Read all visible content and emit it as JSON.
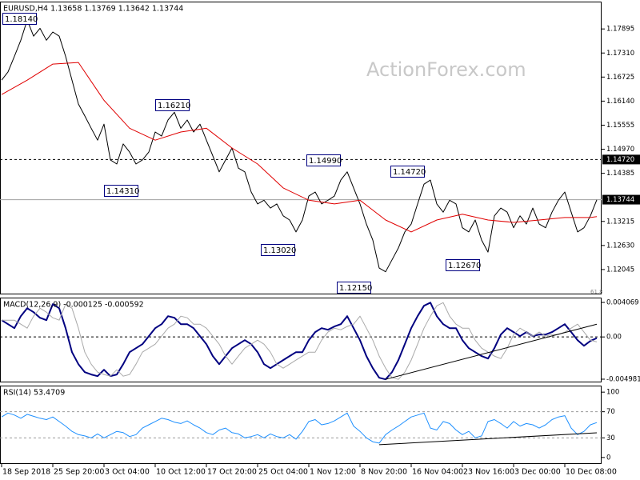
{
  "chart_data": [
    {
      "type": "line",
      "title": "EURUSD,H4  1.13658 1.13769 1.13642 1.13744",
      "watermark": "ActionForex.com",
      "fib_label": "61.8",
      "xlim": [
        -0.25,
        93.75
      ],
      "ylim": [
        1.1144,
        1.1856
      ],
      "yticks": [
        1.17895,
        {
          "value": 1.1731,
          "label": "1.17310"
        },
        1.16725,
        {
          "value": 1.1614,
          "label": "1.16140"
        },
        1.15555,
        {
          "value": 1.1497,
          "label": "1.14970"
        },
        1.14385,
        1.13215,
        {
          "value": 1.1263,
          "label": "1.12630"
        },
        1.12045
      ],
      "hlines": [
        {
          "value": 1.1472,
          "label": "1.14720",
          "dashed": true,
          "color": "#000000"
        },
        {
          "value": 1.13744,
          "label": "1.13744",
          "dashed": false,
          "color": "#a0a0a0"
        }
      ],
      "series": [
        {
          "color": "#000000",
          "values": [
            1.1665,
            1.1685,
            1.1723,
            1.1762,
            1.1811,
            1.1772,
            1.1791,
            1.1762,
            1.1782,
            1.1772,
            1.1723,
            1.1665,
            1.1607,
            1.1578,
            1.1548,
            1.1519,
            1.1558,
            1.1471,
            1.1461,
            1.151,
            1.149,
            1.1461,
            1.1471,
            1.149,
            1.1539,
            1.1529,
            1.1568,
            1.1587,
            1.1548,
            1.1568,
            1.1539,
            1.1558,
            1.1519,
            1.1481,
            1.1442,
            1.1471,
            1.15,
            1.1451,
            1.1442,
            1.1393,
            1.1364,
            1.1373,
            1.1354,
            1.1364,
            1.1335,
            1.1325,
            1.1296,
            1.1325,
            1.1383,
            1.1393,
            1.1364,
            1.1373,
            1.1383,
            1.1422,
            1.1442,
            1.1403,
            1.1364,
            1.1315,
            1.1276,
            1.1208,
            1.1199,
            1.1228,
            1.1257,
            1.1296,
            1.1315,
            1.1364,
            1.1412,
            1.1422,
            1.1364,
            1.1344,
            1.1373,
            1.1364,
            1.1306,
            1.1296,
            1.1325,
            1.1276,
            1.1247,
            1.1335,
            1.1354,
            1.1344,
            1.1306,
            1.1335,
            1.1315,
            1.1354,
            1.1315,
            1.1306,
            1.1344,
            1.1373,
            1.1393,
            1.1344,
            1.1296,
            1.1306,
            1.1335,
            1.1374
          ]
        },
        {
          "color": "#e00000",
          "x": [
            0,
            4,
            8,
            12,
            16,
            20,
            24,
            28,
            32,
            36,
            40,
            44,
            48,
            52,
            56,
            60,
            64,
            68,
            72,
            76,
            80,
            84,
            88,
            92,
            93
          ],
          "values": [
            1.163,
            1.1665,
            1.1704,
            1.1708,
            1.1616,
            1.1548,
            1.1519,
            1.1539,
            1.1548,
            1.15,
            1.1461,
            1.1403,
            1.1373,
            1.1364,
            1.1373,
            1.1325,
            1.1296,
            1.1325,
            1.1339,
            1.1325,
            1.1319,
            1.1325,
            1.1331,
            1.1331,
            1.1333
          ]
        }
      ],
      "annotations": [
        {
          "x": 4,
          "value": 1.1814,
          "label": "1.18140"
        },
        {
          "x": 27,
          "value": 1.1621,
          "label": "1.16210"
        },
        {
          "x": 21,
          "value": 1.1431,
          "label": "1.14310"
        },
        {
          "x": 54,
          "value": 1.1499,
          "label": "1.14990"
        },
        {
          "x": 46,
          "value": 1.1302,
          "label": "1.13020"
        },
        {
          "x": 66,
          "value": 1.1472,
          "label": "1.14720"
        },
        {
          "x": 60,
          "value": 1.1215,
          "label": "1.12150"
        },
        {
          "x": 76,
          "value": 1.1267,
          "label": "1.12670"
        }
      ]
    },
    {
      "type": "line",
      "title": "MACD(12,26,9) -0.000125 -0.000592",
      "xlim": [
        -0.25,
        93.75
      ],
      "ylim": [
        -0.00536,
        0.00464
      ],
      "yticks": [
        0.004069,
        {
          "value": 0,
          "label": "0.00"
        },
        -0.004981
      ],
      "levels": [
        0
      ],
      "series": [
        {
          "color": "#000080",
          "width": 2,
          "values": [
            0.00198,
            0.00151,
            0.00104,
            0.00245,
            0.00339,
            0.00292,
            0.00226,
            0.00198,
            0.00387,
            0.00339,
            0.00104,
            -0.00179,
            -0.00321,
            -0.00415,
            -0.00443,
            -0.00462,
            -0.00387,
            -0.00462,
            -0.00443,
            -0.00321,
            -0.00179,
            -0.00132,
            -0.00085,
            9e-05,
            0.00104,
            0.00151,
            0.00245,
            0.00226,
            0.00151,
            0.00151,
            0.00104,
            9e-05,
            -0.00085,
            -0.00226,
            -0.00321,
            -0.00226,
            -0.00132,
            -0.00085,
            -0.00038,
            -0.00085,
            -0.00179,
            -0.00321,
            -0.00368,
            -0.00321,
            -0.00273,
            -0.00226,
            -0.00179,
            -0.00179,
            -0.00038,
            0.00057,
            0.00104,
            0.00085,
            0.00123,
            0.00151,
            0.00245,
            0.00104,
            -0.00038,
            -0.00226,
            -0.00368,
            -0.00481,
            -0.005,
            -0.00415,
            -0.00273,
            -0.00085,
            0.00104,
            0.00245,
            0.00368,
            0.00405,
            0.00245,
            0.00151,
            0.00104,
            0.00104,
            -0.00038,
            -0.00132,
            -0.00179,
            -0.00226,
            -0.00255,
            -0.00132,
            0.00028,
            0.00104,
            0.00057,
            9e-05,
            0.00057,
            9e-05,
            0.00028,
            0.00028,
            0.00057,
            0.00104,
            0.00151,
            0.00057,
            -0.00038,
            -0.00104,
            -0.00047,
            -0.00013
          ]
        },
        {
          "color": "#a9a9a9",
          "width": 1,
          "values": [
            0.00198,
            0.00198,
            0.00198,
            0.00151,
            0.00104,
            0.00245,
            0.00339,
            0.00292,
            0.00226,
            0.00198,
            0.00387,
            0.00339,
            0.00104,
            -0.00179,
            -0.00321,
            -0.00415,
            -0.00443,
            -0.00462,
            -0.00387,
            -0.00462,
            -0.00443,
            -0.00321,
            -0.00179,
            -0.00132,
            -0.00085,
            9e-05,
            0.00104,
            0.00151,
            0.00245,
            0.00226,
            0.00151,
            0.00151,
            0.00104,
            9e-05,
            -0.00085,
            -0.00226,
            -0.00321,
            -0.00226,
            -0.00132,
            -0.00085,
            -0.00038,
            -0.00085,
            -0.00179,
            -0.00321,
            -0.00368,
            -0.00321,
            -0.00273,
            -0.00226,
            -0.00179,
            -0.00179,
            -0.00038,
            0.00057,
            0.00104,
            0.00085,
            0.00123,
            0.00151,
            0.00245,
            0.00104,
            -0.00038,
            -0.00226,
            -0.00368,
            -0.00481,
            -0.005,
            -0.00415,
            -0.00273,
            -0.00085,
            0.00104,
            0.00245,
            0.00368,
            0.00405,
            0.00245,
            0.00151,
            0.00104,
            0.00104,
            -0.00038,
            -0.00132,
            -0.00179,
            -0.00226,
            -0.00255,
            -0.00132,
            0.00028,
            0.00104,
            0.00057,
            9e-05,
            0.00057,
            9e-05,
            0.00028,
            0.00028,
            0.00057,
            0.00104,
            0.00151,
            0.00057,
            -0.00038,
            -0.00059
          ]
        }
      ],
      "trendline": {
        "x": [
          60,
          93
        ],
        "values": [
          -0.005,
          0.0015
        ]
      }
    },
    {
      "type": "line",
      "title": "RSI(14) 53.4709",
      "xlim": [
        -0.25,
        93.75
      ],
      "ylim": [
        -10,
        110
      ],
      "yticks": [
        100,
        70,
        30,
        0
      ],
      "levels": [
        70,
        30
      ],
      "series": [
        {
          "color": "#1e90ff",
          "width": 1,
          "values": [
            62,
            68,
            65,
            60,
            66,
            63,
            60,
            58,
            62,
            55,
            48,
            40,
            35,
            33,
            30,
            36,
            30,
            35,
            40,
            38,
            32,
            35,
            45,
            50,
            55,
            60,
            58,
            54,
            52,
            56,
            50,
            45,
            38,
            35,
            42,
            45,
            38,
            36,
            30,
            32,
            35,
            30,
            36,
            32,
            30,
            35,
            28,
            40,
            55,
            58,
            50,
            52,
            56,
            62,
            68,
            48,
            40,
            30,
            24,
            22,
            35,
            42,
            48,
            55,
            62,
            65,
            68,
            45,
            42,
            55,
            52,
            42,
            35,
            40,
            30,
            33,
            55,
            58,
            52,
            45,
            55,
            48,
            52,
            50,
            45,
            50,
            58,
            62,
            64,
            45,
            35,
            40,
            50,
            53.4709
          ]
        }
      ],
      "trendline": {
        "x": [
          59,
          93
        ],
        "values": [
          19.5,
          37.8
        ]
      },
      "xticks": [
        {
          "value": 0,
          "label": "18 Sep 2018"
        },
        {
          "value": 8,
          "label": "25 Sep 20:00"
        },
        {
          "value": 16,
          "label": "3 Oct 04:00"
        },
        {
          "value": 24,
          "label": "10 Oct 12:00"
        },
        {
          "value": 32,
          "label": "17 Oct 20:00"
        },
        {
          "value": 40,
          "label": "25 Oct 04:00"
        },
        {
          "value": 48,
          "label": "1 Nov 12:00"
        },
        {
          "value": 56,
          "label": "8 Nov 20:00"
        },
        {
          "value": 64,
          "label": "16 Nov 04:00"
        },
        {
          "value": 72,
          "label": "23 Nov 16:00"
        },
        {
          "value": 80,
          "label": "3 Dec 00:00"
        },
        {
          "value": 88,
          "label": "10 Dec 08:00"
        }
      ]
    }
  ]
}
